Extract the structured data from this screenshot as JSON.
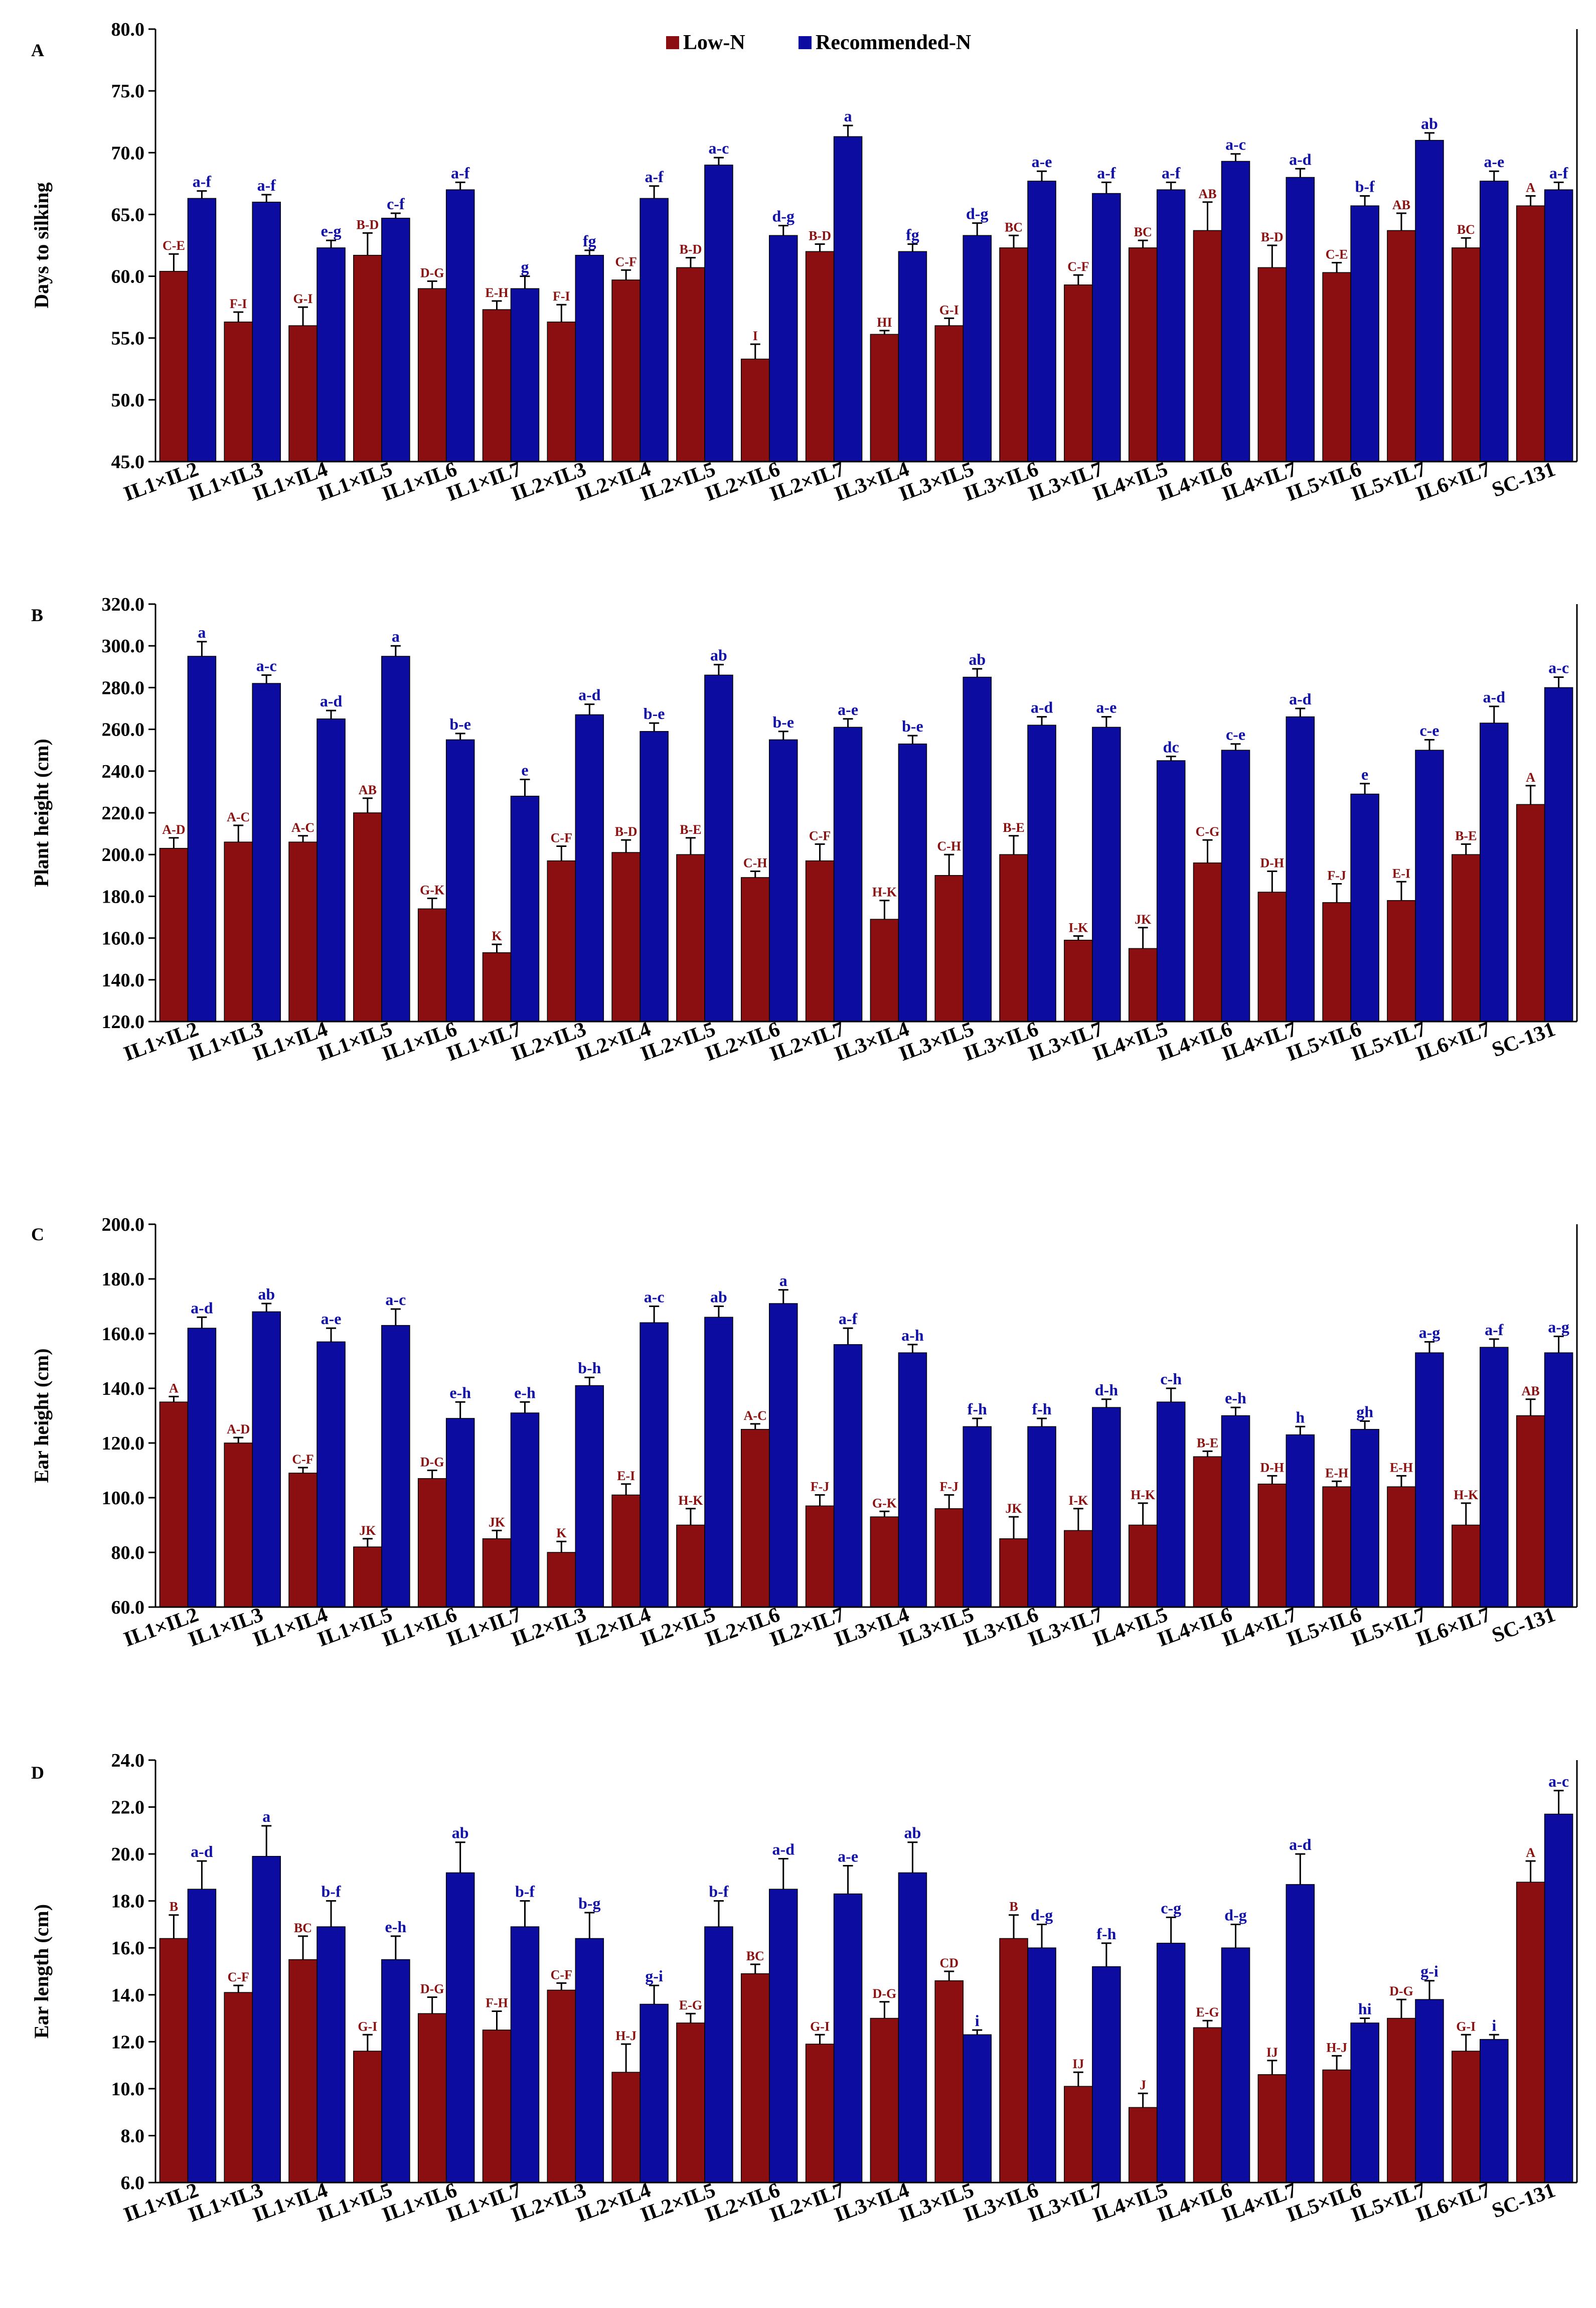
{
  "colors": {
    "low": "#8B0F10",
    "rec": "#0C0CA0"
  },
  "legend": {
    "low": "Low-N",
    "rec": "Recommended-N"
  },
  "chart_data": [
    {
      "panel": "A",
      "type": "bar",
      "ylabel": "Days to silking",
      "ylim": [
        45,
        80
      ],
      "yticks": [
        "45.0",
        "50.0",
        "55.0",
        "60.0",
        "65.0",
        "70.0",
        "75.0",
        "80.0"
      ],
      "categories": [
        "IL1×IL2",
        "IL1×IL3",
        "IL1×IL4",
        "IL1×IL5",
        "IL1×IL6",
        "IL1×IL7",
        "IL2×IL3",
        "IL2×IL4",
        "IL2×IL5",
        "IL2×IL6",
        "IL2×IL7",
        "IL3×IL4",
        "IL3×IL5",
        "IL3×IL6",
        "IL3×IL7",
        "IL4×IL5",
        "IL4×IL6",
        "IL4×IL7",
        "IL5×IL6",
        "IL5×IL7",
        "IL6×IL7",
        "SC-131"
      ],
      "series": [
        {
          "name": "Low-N",
          "values": [
            60.4,
            56.3,
            56.0,
            61.7,
            59.0,
            57.3,
            56.3,
            59.7,
            60.7,
            53.3,
            62.0,
            55.3,
            56.0,
            62.3,
            59.3,
            62.3,
            63.7,
            60.7,
            60.3,
            63.7,
            62.3,
            65.7
          ],
          "errors": [
            1.4,
            0.8,
            1.5,
            1.8,
            0.6,
            0.7,
            1.4,
            0.8,
            0.8,
            1.2,
            0.6,
            0.3,
            0.6,
            1.0,
            0.8,
            0.6,
            2.3,
            1.8,
            0.8,
            1.4,
            0.8,
            0.8
          ],
          "labels": [
            "C-E",
            "F-I",
            "G-I",
            "B-D",
            "D-G",
            "E-H",
            "F-I",
            "C-F",
            "B-D",
            "I",
            "B-D",
            "HI",
            "G-I",
            "BC",
            "C-F",
            "BC",
            "AB",
            "B-D",
            "C-E",
            "AB",
            "BC",
            "A"
          ]
        },
        {
          "name": "Recommended-N",
          "values": [
            66.3,
            66.0,
            62.3,
            64.7,
            67.0,
            59.0,
            61.7,
            66.3,
            69.0,
            63.3,
            71.3,
            62.0,
            63.3,
            67.7,
            66.7,
            67.0,
            69.3,
            68.0,
            65.7,
            71.0,
            67.7,
            67.0
          ],
          "errors": [
            0.6,
            0.6,
            0.6,
            0.4,
            0.6,
            1.0,
            0.4,
            1.0,
            0.6,
            0.8,
            0.9,
            0.6,
            1.0,
            0.8,
            0.9,
            0.6,
            0.6,
            0.7,
            0.8,
            0.6,
            0.8,
            0.6
          ],
          "labels": [
            "a-f",
            "a-f",
            "e-g",
            "c-f",
            "a-f",
            "g",
            "fg",
            "a-f",
            "a-c",
            "d-g",
            "a",
            "fg",
            "d-g",
            "a-e",
            "a-f",
            "a-f",
            "a-c",
            "a-d",
            "b-f",
            "ab",
            "a-e",
            "a-f"
          ]
        }
      ]
    },
    {
      "panel": "B",
      "type": "bar",
      "ylabel": "Plant height (cm)",
      "ylim": [
        120,
        320
      ],
      "yticks": [
        "120.0",
        "140.0",
        "160.0",
        "180.0",
        "200.0",
        "220.0",
        "240.0",
        "260.0",
        "280.0",
        "300.0",
        "320.0"
      ],
      "categories": [
        "IL1×IL2",
        "IL1×IL3",
        "IL1×IL4",
        "IL1×IL5",
        "IL1×IL6",
        "IL1×IL7",
        "IL2×IL3",
        "IL2×IL4",
        "IL2×IL5",
        "IL2×IL6",
        "IL2×IL7",
        "IL3×IL4",
        "IL3×IL5",
        "IL3×IL6",
        "IL3×IL7",
        "IL4×IL5",
        "IL4×IL6",
        "IL4×IL7",
        "IL5×IL6",
        "IL5×IL7",
        "IL6×IL7",
        "SC-131"
      ],
      "series": [
        {
          "name": "Low-N",
          "values": [
            203,
            206,
            206,
            220,
            174,
            153,
            197,
            201,
            200,
            189,
            197,
            169,
            190,
            200,
            159,
            155,
            196,
            182,
            177,
            178,
            200,
            224
          ],
          "errors": [
            5,
            8,
            3,
            7,
            5,
            4,
            7,
            6,
            8,
            3,
            8,
            9,
            10,
            9,
            2,
            10,
            11,
            10,
            9,
            9,
            5,
            9
          ],
          "labels": [
            "A-D",
            "A-C",
            "A-C",
            "AB",
            "G-K",
            "K",
            "C-F",
            "B-D",
            "B-E",
            "C-H",
            "C-F",
            "H-K",
            "C-H",
            "B-E",
            "I-K",
            "JK",
            "C-G",
            "D-H",
            "F-J",
            "E-I",
            "B-E",
            "A"
          ]
        },
        {
          "name": "Recommended-N",
          "values": [
            295,
            282,
            265,
            295,
            255,
            228,
            267,
            259,
            286,
            255,
            261,
            253,
            285,
            262,
            261,
            245,
            250,
            266,
            229,
            250,
            263,
            280
          ],
          "errors": [
            7,
            4,
            4,
            5,
            3,
            8,
            5,
            4,
            5,
            4,
            4,
            4,
            4,
            4,
            5,
            2,
            3,
            4,
            5,
            5,
            8,
            5
          ],
          "labels": [
            "a",
            "a-c",
            "a-d",
            "a",
            "b-e",
            "e",
            "a-d",
            "b-e",
            "ab",
            "b-e",
            "a-e",
            "b-e",
            "ab",
            "a-d",
            "a-e",
            "dc",
            "c-e",
            "a-d",
            "e",
            "c-e",
            "a-d",
            "a-c"
          ]
        }
      ]
    },
    {
      "panel": "C",
      "type": "bar",
      "ylabel": "Ear height (cm)",
      "ylim": [
        60,
        200
      ],
      "yticks": [
        "60.0",
        "80.0",
        "100.0",
        "120.0",
        "140.0",
        "160.0",
        "180.0",
        "200.0"
      ],
      "categories": [
        "IL1×IL2",
        "IL1×IL3",
        "IL1×IL4",
        "IL1×IL5",
        "IL1×IL6",
        "IL1×IL7",
        "IL2×IL3",
        "IL2×IL4",
        "IL2×IL5",
        "IL2×IL6",
        "IL2×IL7",
        "IL3×IL4",
        "IL3×IL5",
        "IL3×IL6",
        "IL3×IL7",
        "IL4×IL5",
        "IL4×IL6",
        "IL4×IL7",
        "IL5×IL6",
        "IL5×IL7",
        "IL6×IL7",
        "SC-131"
      ],
      "series": [
        {
          "name": "Low-N",
          "values": [
            135,
            120,
            109,
            82,
            107,
            85,
            80,
            101,
            90,
            125,
            97,
            93,
            96,
            85,
            88,
            90,
            115,
            105,
            104,
            104,
            90,
            130
          ],
          "errors": [
            2,
            2,
            2,
            3,
            3,
            3,
            4,
            4,
            6,
            2,
            4,
            2,
            5,
            8,
            8,
            8,
            2,
            3,
            2,
            4,
            8,
            6
          ],
          "labels": [
            "A",
            "A-D",
            "C-F",
            "JK",
            "D-G",
            "JK",
            "K",
            "E-I",
            "H-K",
            "A-C",
            "F-J",
            "G-K",
            "F-J",
            "JK",
            "I-K",
            "H-K",
            "B-E",
            "D-H",
            "E-H",
            "E-H",
            "H-K",
            "AB"
          ]
        },
        {
          "name": "Recommended-N",
          "values": [
            162,
            168,
            157,
            163,
            129,
            131,
            141,
            164,
            166,
            171,
            156,
            153,
            126,
            126,
            133,
            135,
            130,
            123,
            125,
            153,
            155,
            153
          ],
          "errors": [
            4,
            3,
            5,
            6,
            6,
            4,
            3,
            6,
            4,
            5,
            6,
            3,
            3,
            3,
            3,
            5,
            3,
            3,
            3,
            4,
            3,
            6
          ],
          "labels": [
            "a-d",
            "ab",
            "a-e",
            "a-c",
            "e-h",
            "e-h",
            "b-h",
            "a-c",
            "ab",
            "a",
            "a-f",
            "a-h",
            "f-h",
            "f-h",
            "d-h",
            "c-h",
            "e-h",
            "h",
            "gh",
            "a-g",
            "a-f",
            "a-g"
          ]
        }
      ]
    },
    {
      "panel": "D",
      "type": "bar",
      "ylabel": "Ear length (cm)",
      "ylim": [
        6,
        24
      ],
      "yticks": [
        "6.0",
        "8.0",
        "10.0",
        "12.0",
        "14.0",
        "16.0",
        "18.0",
        "20.0",
        "22.0",
        "24.0"
      ],
      "categories": [
        "IL1×IL2",
        "IL1×IL3",
        "IL1×IL4",
        "IL1×IL5",
        "IL1×IL6",
        "IL1×IL7",
        "IL2×IL3",
        "IL2×IL4",
        "IL2×IL5",
        "IL2×IL6",
        "IL2×IL7",
        "IL3×IL4",
        "IL3×IL5",
        "IL3×IL6",
        "IL3×IL7",
        "IL4×IL5",
        "IL4×IL6",
        "IL4×IL7",
        "IL5×IL6",
        "IL5×IL7",
        "IL6×IL7",
        "SC-131"
      ],
      "series": [
        {
          "name": "Low-N",
          "values": [
            16.4,
            14.1,
            15.5,
            11.6,
            13.2,
            12.5,
            14.2,
            10.7,
            12.8,
            14.9,
            11.9,
            13.0,
            14.6,
            16.4,
            10.1,
            9.2,
            12.6,
            10.6,
            10.8,
            13.0,
            11.6,
            18.8
          ],
          "errors": [
            1.0,
            0.3,
            1.0,
            0.7,
            0.7,
            0.8,
            0.3,
            1.2,
            0.4,
            0.4,
            0.4,
            0.7,
            0.4,
            1.0,
            0.6,
            0.6,
            0.3,
            0.6,
            0.6,
            0.8,
            0.7,
            0.9
          ],
          "labels": [
            "B",
            "C-F",
            "BC",
            "G-I",
            "D-G",
            "F-H",
            "C-F",
            "H-J",
            "E-G",
            "BC",
            "G-I",
            "D-G",
            "CD",
            "B",
            "IJ",
            "J",
            "E-G",
            "IJ",
            "H-J",
            "D-G",
            "G-I",
            "A"
          ]
        },
        {
          "name": "Recommended-N",
          "values": [
            18.5,
            19.9,
            16.9,
            15.5,
            19.2,
            16.9,
            16.4,
            13.6,
            16.9,
            18.5,
            18.3,
            19.2,
            12.3,
            16.0,
            15.2,
            16.2,
            16.0,
            18.7,
            12.8,
            13.8,
            12.1,
            21.7
          ],
          "errors": [
            1.2,
            1.3,
            1.1,
            1.0,
            1.3,
            1.1,
            1.1,
            0.8,
            1.1,
            1.3,
            1.2,
            1.3,
            0.2,
            1.0,
            1.0,
            1.1,
            1.0,
            1.3,
            0.2,
            0.8,
            0.2,
            1.0
          ],
          "labels": [
            "a-d",
            "a",
            "b-f",
            "e-h",
            "ab",
            "b-f",
            "b-g",
            "g-i",
            "b-f",
            "a-d",
            "a-e",
            "ab",
            "i",
            "d-g",
            "f-h",
            "c-g",
            "d-g",
            "a-d",
            "hi",
            "g-i",
            "i",
            "a-c"
          ]
        }
      ]
    }
  ]
}
